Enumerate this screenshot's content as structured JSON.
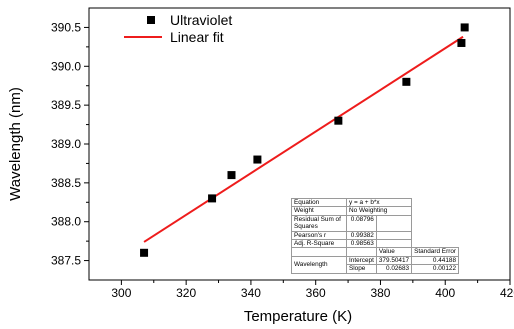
{
  "chart_data": {
    "type": "scatter",
    "xlabel": "Temperature (K)",
    "ylabel": "Wavelength (nm)",
    "xlim": [
      290,
      420
    ],
    "ylim": [
      387.25,
      390.75
    ],
    "x_ticks": [
      300,
      320,
      340,
      360,
      380,
      400,
      420
    ],
    "y_ticks": [
      387.5,
      388.0,
      388.5,
      389.0,
      389.5,
      390.0,
      390.5
    ],
    "x_tick_labels": [
      "300",
      "320",
      "340",
      "360",
      "380",
      "400",
      "420"
    ],
    "y_tick_labels": [
      "387.5",
      "388.0",
      "388.5",
      "389.0",
      "389.5",
      "390.0",
      "390.5"
    ],
    "legend_position": "top-left",
    "series": [
      {
        "name": "Ultraviolet",
        "marker": "square",
        "color": "#000000",
        "x": [
          307,
          328,
          334,
          342,
          367,
          388,
          405,
          406
        ],
        "y": [
          387.6,
          388.3,
          388.6,
          388.8,
          389.3,
          389.8,
          390.3,
          390.5
        ]
      },
      {
        "name": "Linear fit",
        "line": "solid",
        "color": "#ee1c1c",
        "x": [
          307,
          405.5
        ],
        "y": [
          387.74,
          390.38
        ]
      }
    ],
    "fit_table": {
      "equation_label": "Equation",
      "equation_value": "y = a + b*x",
      "weight_label": "Weight",
      "weight_value": "No Weighting",
      "rss_label": "Residual Sum of Squares",
      "rss_value": "0.08796",
      "pearson_label": "Pearson's r",
      "pearson_value": "0.99382",
      "adj_r2_label": "Adj. R-Square",
      "adj_r2_value": "0.98563",
      "value_header": "Value",
      "stderr_header": "Standard Error",
      "row_label": "Wavelength",
      "intercept_label": "Intercept",
      "intercept_value": "379.50417",
      "intercept_error": "0.44188",
      "slope_label": "Slope",
      "slope_value": "0.02683",
      "slope_error": "0.00122"
    }
  }
}
